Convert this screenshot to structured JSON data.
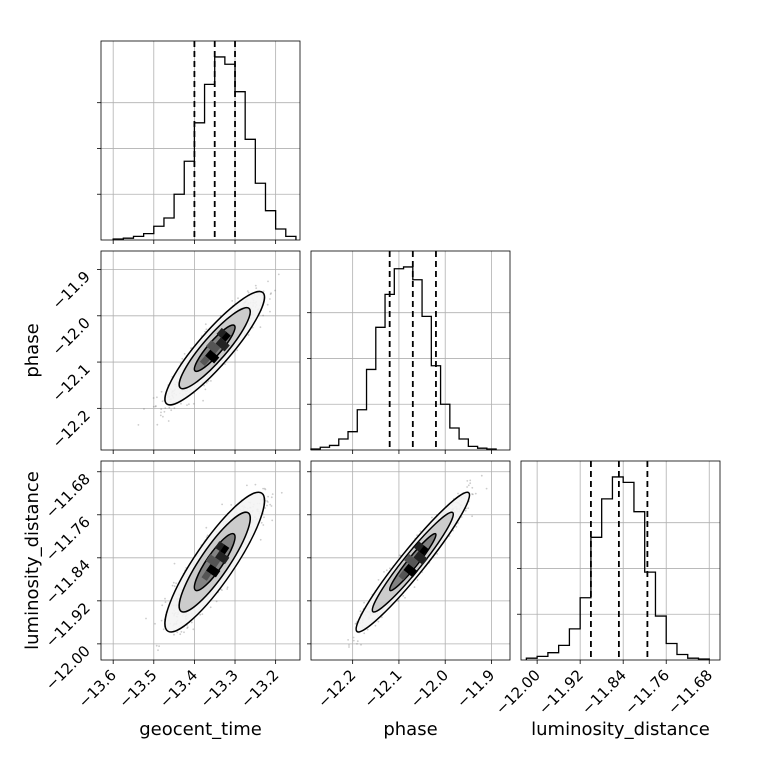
{
  "chart_data": {
    "type": "corner",
    "parameters": [
      "geocent_time",
      "phase",
      "luminosity_distance"
    ],
    "axis_labels": [
      "geocent_time",
      "phase",
      "luminosity_distance"
    ],
    "grid": true,
    "ranges": [
      [
        -13.63,
        -13.14
      ],
      [
        -12.29,
        -11.86
      ],
      [
        -12.03,
        -11.66
      ]
    ],
    "ticks": [
      [
        -13.6,
        -13.5,
        -13.4,
        -13.3,
        -13.2
      ],
      [
        -12.2,
        -12.1,
        -12.0,
        -11.9
      ],
      [
        -12.0,
        -11.92,
        -11.84,
        -11.76,
        -11.68
      ]
    ],
    "tick_labels": [
      [
        "−13.6",
        "−13.5",
        "−13.4",
        "−13.3",
        "−13.2"
      ],
      [
        "−12.2",
        "−12.1",
        "−12.0",
        "−11.9"
      ],
      [
        "−12.00",
        "−11.92",
        "−11.84",
        "−11.76",
        "−11.68"
      ]
    ],
    "quantiles": [
      [
        -13.4,
        -13.35,
        -13.3
      ],
      [
        -12.12,
        -12.07,
        -12.02
      ],
      [
        -11.9,
        -11.848,
        -11.795
      ]
    ],
    "histograms": [
      {
        "bin_edges": [
          -13.6,
          -13.575,
          -13.55,
          -13.525,
          -13.5,
          -13.475,
          -13.45,
          -13.425,
          -13.4,
          -13.375,
          -13.35,
          -13.325,
          -13.3,
          -13.275,
          -13.25,
          -13.225,
          -13.2,
          -13.175,
          -13.15
        ],
        "counts": [
          0.005,
          0.01,
          0.02,
          0.035,
          0.075,
          0.12,
          0.25,
          0.43,
          0.64,
          0.85,
          1.0,
          0.96,
          0.81,
          0.55,
          0.31,
          0.16,
          0.06,
          0.02
        ]
      },
      {
        "bin_edges": [
          -12.29,
          -12.27,
          -12.25,
          -12.23,
          -12.21,
          -12.19,
          -12.17,
          -12.15,
          -12.13,
          -12.11,
          -12.09,
          -12.07,
          -12.05,
          -12.03,
          -12.01,
          -11.99,
          -11.97,
          -11.95,
          -11.93,
          -11.91,
          -11.89
        ],
        "counts": [
          0.005,
          0.015,
          0.025,
          0.06,
          0.1,
          0.22,
          0.44,
          0.67,
          0.85,
          0.99,
          1.0,
          0.93,
          0.73,
          0.46,
          0.25,
          0.12,
          0.06,
          0.02,
          0.01,
          0.005
        ]
      },
      {
        "bin_edges": [
          -12.02,
          -12.0,
          -11.98,
          -11.96,
          -11.94,
          -11.92,
          -11.9,
          -11.88,
          -11.86,
          -11.84,
          -11.82,
          -11.8,
          -11.78,
          -11.76,
          -11.74,
          -11.72,
          -11.7,
          -11.68
        ],
        "counts": [
          0.01,
          0.02,
          0.04,
          0.08,
          0.17,
          0.34,
          0.67,
          0.88,
          1.0,
          0.97,
          0.81,
          0.48,
          0.24,
          0.09,
          0.03,
          0.01,
          0.005
        ]
      }
    ],
    "scatter": [
      {
        "x_param": "geocent_time",
        "y_param": "phase",
        "x_mean": -13.35,
        "y_mean": -12.07,
        "x_sd": 0.05,
        "y_sd": 0.05,
        "rho": 0.9
      },
      {
        "x_param": "geocent_time",
        "y_param": "luminosity_distance",
        "x_mean": -13.35,
        "y_mean": -11.848,
        "x_sd": 0.05,
        "y_sd": 0.053,
        "rho": 0.88
      },
      {
        "x_param": "phase",
        "y_param": "luminosity_distance",
        "x_mean": -12.07,
        "y_mean": -11.848,
        "x_sd": 0.05,
        "y_sd": 0.053,
        "rho": 0.96
      }
    ]
  }
}
